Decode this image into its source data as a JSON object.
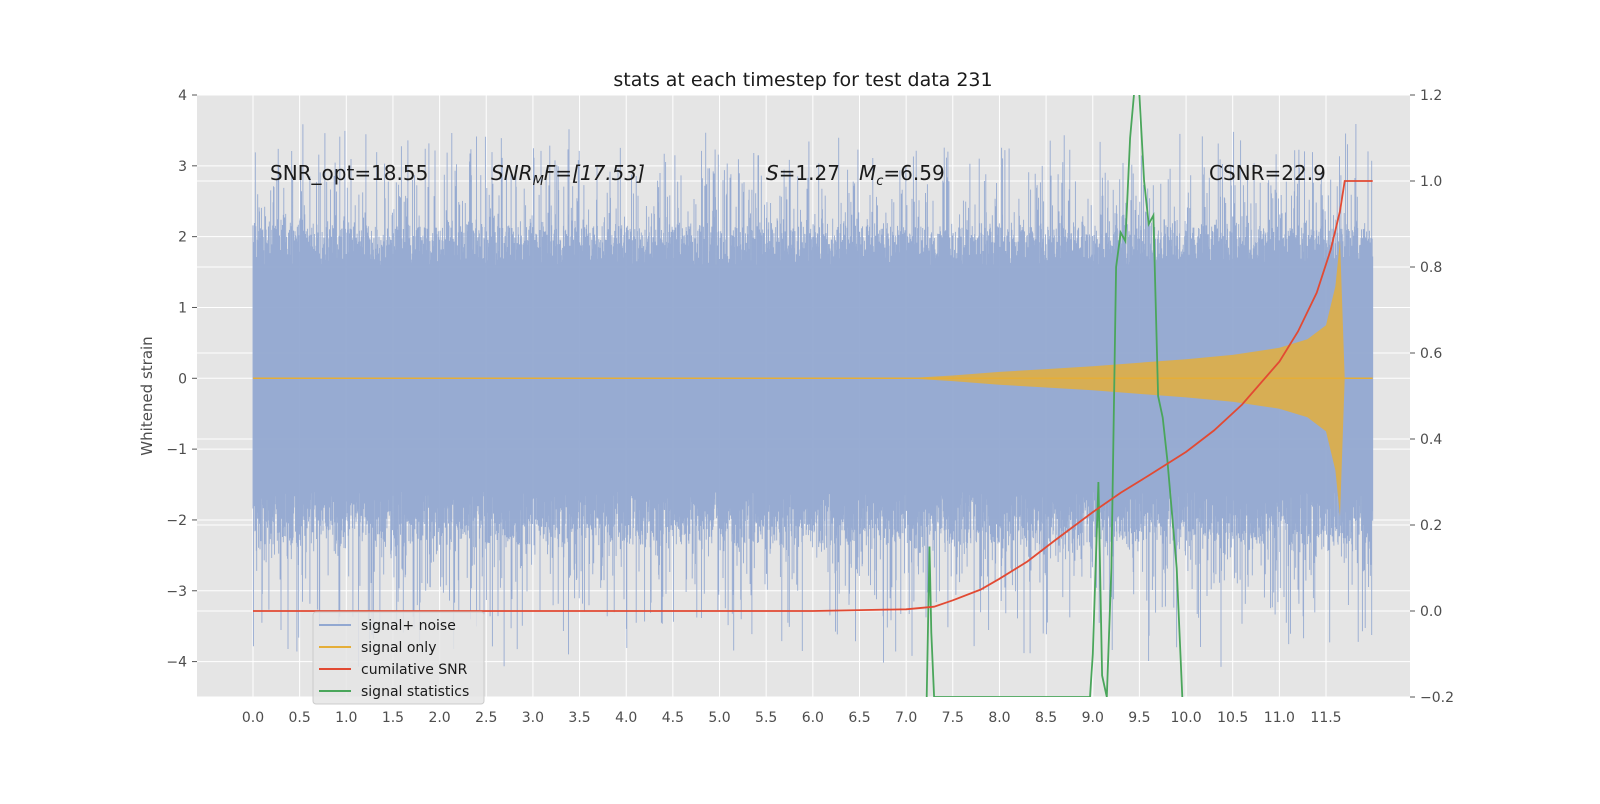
{
  "chart_data": {
    "type": "line",
    "title": "stats at each timestep for test data 231",
    "xlabel": "",
    "ylabel": "Whitened strain",
    "xlim": [
      -0.6,
      12.4
    ],
    "ylim": [
      -4.5,
      4.0
    ],
    "y2lim": [
      -0.2,
      1.2
    ],
    "grid": true,
    "x_ticks": [
      "0.0",
      "0.5",
      "1.0",
      "1.5",
      "2.0",
      "2.5",
      "3.0",
      "3.5",
      "4.0",
      "4.5",
      "5.0",
      "5.5",
      "6.0",
      "6.5",
      "7.0",
      "7.5",
      "8.0",
      "8.5",
      "9.0",
      "9.5",
      "10.0",
      "10.5",
      "11.0",
      "11.5"
    ],
    "y_ticks": [
      "4",
      "3",
      "2",
      "1",
      "0",
      "−1",
      "−2",
      "−3",
      "−4"
    ],
    "y_tick_values": [
      4,
      3,
      2,
      1,
      0,
      -1,
      -2,
      -3,
      -4
    ],
    "y2_ticks": [
      "1.2",
      "1.0",
      "0.8",
      "0.6",
      "0.4",
      "0.2",
      "0.0",
      "−0.2"
    ],
    "y2_tick_values": [
      1.2,
      1.0,
      0.8,
      0.6,
      0.4,
      0.2,
      0.0,
      -0.2
    ],
    "annotations": {
      "snr_opt": "SNR_opt=18.55",
      "snr_mf_main": "SNR",
      "snr_mf_sub": "M",
      "snr_mf_rest": "F=[17.53]",
      "s_var": "S",
      "s_val": "=1.27",
      "mc_var": "M",
      "mc_sub": "c",
      "mc_val": "=6.59",
      "csnr": "CSNR=22.9"
    },
    "legend": {
      "placement": "lower-left",
      "entries": [
        "signal+ noise",
        "signal only",
        "cumilative SNR",
        "signal statistics"
      ]
    },
    "colors": {
      "noise": "#92a8d1",
      "signal": "#e5ae38",
      "csnr": "#e24a33",
      "stats": "#4aa65b",
      "plot_bg": "#e5e5e5",
      "grid": "#ffffff"
    },
    "series": [
      {
        "name": "signal+ noise",
        "axis": "left",
        "style": "noise band",
        "x_range": [
          0.0,
          12.0
        ],
        "envelope_upper": 1.6,
        "envelope_lower": -1.6,
        "peak_upper": 3.65,
        "peak_lower": -4.1
      },
      {
        "name": "signal only",
        "axis": "left",
        "style": "chirp envelope",
        "x": [
          0.0,
          7.0,
          7.5,
          8.0,
          8.5,
          9.0,
          9.5,
          10.0,
          10.5,
          11.0,
          11.3,
          11.5,
          11.6,
          11.65,
          11.7,
          12.0
        ],
        "amplitude": [
          0.0,
          0.0,
          0.04,
          0.09,
          0.13,
          0.17,
          0.22,
          0.27,
          0.33,
          0.43,
          0.55,
          0.75,
          1.3,
          1.95,
          0.0,
          0.0
        ]
      },
      {
        "name": "cumilative SNR",
        "axis": "right",
        "x": [
          0.0,
          1.0,
          2.0,
          3.0,
          4.0,
          5.0,
          6.0,
          6.5,
          7.0,
          7.3,
          7.5,
          7.8,
          8.0,
          8.3,
          8.6,
          9.0,
          9.3,
          9.6,
          10.0,
          10.3,
          10.6,
          11.0,
          11.2,
          11.4,
          11.55,
          11.65,
          11.7,
          12.0
        ],
        "y": [
          0.0,
          0.0,
          0.0,
          0.0,
          0.0,
          0.0,
          0.0,
          0.002,
          0.004,
          0.01,
          0.025,
          0.05,
          0.075,
          0.115,
          0.165,
          0.23,
          0.275,
          0.315,
          0.37,
          0.42,
          0.48,
          0.58,
          0.65,
          0.74,
          0.84,
          0.93,
          1.0,
          1.0
        ]
      },
      {
        "name": "signal statistics",
        "axis": "right",
        "x": [
          7.22,
          7.25,
          7.27,
          7.3,
          8.97,
          9.0,
          9.06,
          9.1,
          9.15,
          9.2,
          9.25,
          9.3,
          9.35,
          9.4,
          9.45,
          9.5,
          9.55,
          9.6,
          9.65,
          9.7,
          9.75,
          9.8,
          9.9,
          9.96
        ],
        "y": [
          -0.2,
          0.15,
          -0.05,
          -0.2,
          -0.2,
          -0.1,
          0.3,
          -0.15,
          -0.2,
          0.1,
          0.8,
          0.88,
          0.86,
          1.1,
          1.22,
          1.2,
          1.0,
          0.9,
          0.92,
          0.5,
          0.45,
          0.35,
          0.1,
          -0.2
        ]
      }
    ]
  }
}
